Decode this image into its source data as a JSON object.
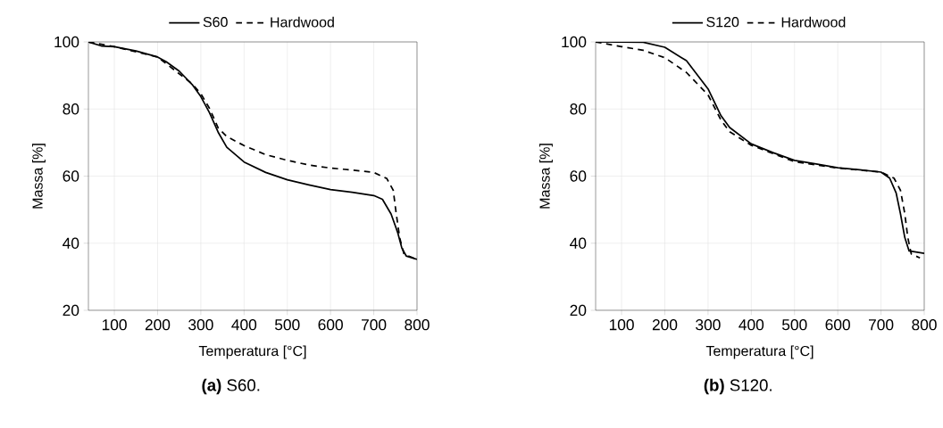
{
  "chart_data": [
    {
      "type": "line",
      "xlabel": "Temperatura [°C]",
      "ylabel": "Massa [%]",
      "annotations": [
        "**(a)** S60."
      ],
      "xlim": [
        40,
        800
      ],
      "ylim": [
        20,
        100
      ],
      "xticks": [
        100,
        200,
        300,
        400,
        500,
        600,
        700,
        800
      ],
      "yticks": [
        20,
        40,
        60,
        80,
        100
      ],
      "grid": true,
      "legend": "top",
      "series": [
        {
          "name": "S60",
          "color": "#000000",
          "line_style": "solid",
          "x": [
            40,
            70,
            100,
            150,
            200,
            220,
            250,
            280,
            300,
            320,
            340,
            360,
            400,
            450,
            500,
            550,
            600,
            650,
            700,
            720,
            740,
            755,
            765,
            775,
            800
          ],
          "values": [
            100,
            98.8,
            98.6,
            97.3,
            95.5,
            94.1,
            91.3,
            87.3,
            83.7,
            78.9,
            73.1,
            68.6,
            64.2,
            61.1,
            58.9,
            57.4,
            56,
            55.2,
            54.2,
            53.1,
            48.7,
            43.3,
            38.5,
            36.2,
            35.2
          ]
        },
        {
          "name": "Hardwood",
          "color": "#000000",
          "line_style": "dashed",
          "x": [
            40,
            100,
            200,
            280,
            300,
            320,
            340,
            360,
            400,
            450,
            500,
            550,
            600,
            650,
            700,
            730,
            745,
            752,
            760,
            770,
            800
          ],
          "values": [
            100,
            98.6,
            95.5,
            87.5,
            84.6,
            80.2,
            74.4,
            71.8,
            69.1,
            66.4,
            64.7,
            63.3,
            62.4,
            61.8,
            61.1,
            59.3,
            55.8,
            48.7,
            41.6,
            36.7,
            35.2
          ]
        }
      ]
    },
    {
      "type": "line",
      "xlabel": "Temperatura [°C]",
      "ylabel": "Massa [%]",
      "annotations": [
        "**(b)** S120."
      ],
      "xlim": [
        40,
        800
      ],
      "ylim": [
        20,
        100
      ],
      "xticks": [
        100,
        200,
        300,
        400,
        500,
        600,
        700,
        800
      ],
      "yticks": [
        20,
        40,
        60,
        80,
        100
      ],
      "grid": true,
      "legend": "top",
      "series": [
        {
          "name": "S120",
          "color": "#000000",
          "line_style": "solid",
          "x": [
            40,
            150,
            200,
            250,
            300,
            330,
            350,
            400,
            450,
            500,
            550,
            600,
            650,
            700,
            720,
            735,
            745,
            755,
            765,
            800
          ],
          "values": [
            100,
            99.9,
            98.4,
            94.4,
            86.0,
            78.0,
            74.5,
            69.6,
            67.0,
            64.7,
            63.6,
            62.5,
            61.9,
            61.2,
            59.4,
            55,
            48.8,
            41.7,
            37.7,
            37.0
          ]
        },
        {
          "name": "Hardwood",
          "color": "#000000",
          "line_style": "dashed",
          "x": [
            40,
            100,
            150,
            200,
            250,
            300,
            330,
            350,
            400,
            500,
            600,
            700,
            730,
            745,
            755,
            762,
            770,
            790
          ],
          "values": [
            100,
            98.6,
            97.5,
            95.3,
            90.9,
            84.2,
            76.7,
            73.2,
            69.2,
            64.3,
            62.4,
            61.2,
            59.4,
            55.8,
            48.8,
            41.7,
            36.8,
            35.6
          ]
        }
      ]
    }
  ]
}
